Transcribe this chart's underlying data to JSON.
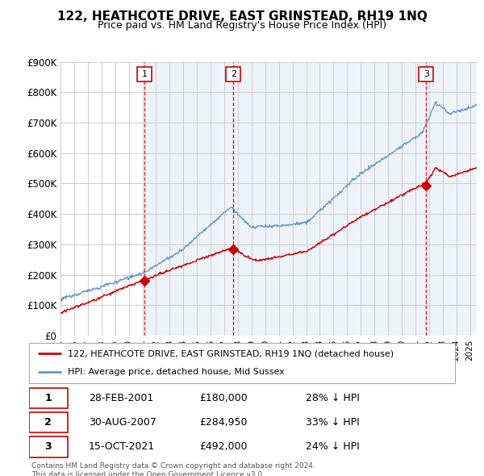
{
  "title": "122, HEATHCOTE DRIVE, EAST GRINSTEAD, RH19 1NQ",
  "subtitle": "Price paid vs. HM Land Registry's House Price Index (HPI)",
  "ylabel_ticks": [
    "£0",
    "£100K",
    "£200K",
    "£300K",
    "£400K",
    "£500K",
    "£600K",
    "£700K",
    "£800K",
    "£900K"
  ],
  "ylim": [
    0,
    900000
  ],
  "xlim_start": 1995.0,
  "xlim_end": 2025.5,
  "sale_dates": [
    2001.163,
    2007.664,
    2021.789
  ],
  "sale_prices": [
    180000,
    284950,
    492000
  ],
  "sale_labels": [
    "1",
    "2",
    "3"
  ],
  "sale_table": [
    {
      "label": "1",
      "date": "28-FEB-2001",
      "price": "£180,000",
      "pct": "28% ↓ HPI"
    },
    {
      "label": "2",
      "date": "30-AUG-2007",
      "price": "£284,950",
      "pct": "33% ↓ HPI"
    },
    {
      "label": "3",
      "date": "15-OCT-2021",
      "price": "£492,000",
      "pct": "24% ↓ HPI"
    }
  ],
  "line_color_sales": "#cc0000",
  "line_color_hpi": "#6699cc",
  "vline_color": "#cc0000",
  "grid_color": "#cccccc",
  "bg_color": "#ffffff",
  "chart_bg_color": "#eef3fa",
  "legend_label_sales": "122, HEATHCOTE DRIVE, EAST GRINSTEAD, RH19 1NQ (detached house)",
  "legend_label_hpi": "HPI: Average price, detached house, Mid Sussex",
  "footnote": "Contains HM Land Registry data © Crown copyright and database right 2024.\nThis data is licensed under the Open Government Licence v3.0."
}
